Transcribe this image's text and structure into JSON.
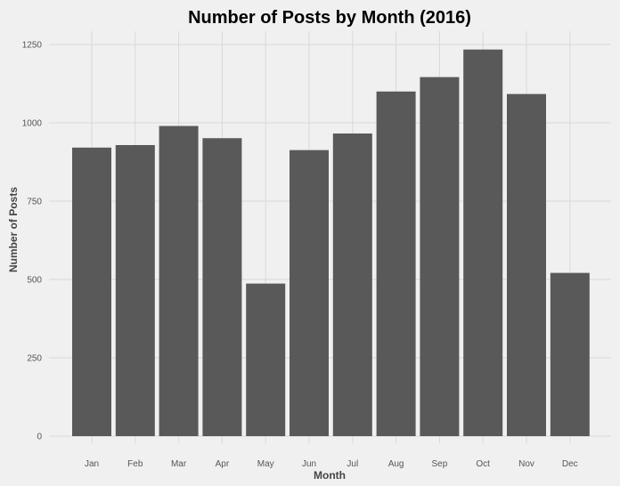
{
  "chart_data": {
    "type": "bar",
    "title": "Number of Posts by Month (2016)",
    "xlabel": "Month",
    "ylabel": "Number of Posts",
    "categories": [
      "Jan",
      "Feb",
      "Mar",
      "Apr",
      "May",
      "Jun",
      "Jul",
      "Aug",
      "Sep",
      "Oct",
      "Nov",
      "Dec"
    ],
    "values": [
      921,
      929,
      990,
      951,
      487,
      913,
      966,
      1100,
      1146,
      1234,
      1092,
      521
    ],
    "ylim": [
      0,
      1250
    ],
    "yticks": [
      0,
      250,
      500,
      750,
      1000,
      1250
    ],
    "grid": true,
    "legend": "none",
    "bar_color": "#595959",
    "background_color": "#f0f0f0",
    "grid_color": "#d9d9d9"
  }
}
